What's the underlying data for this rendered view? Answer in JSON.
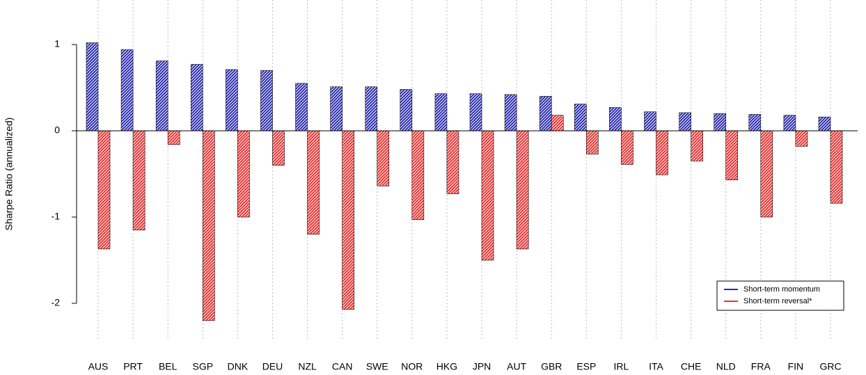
{
  "chart_data": {
    "type": "bar",
    "y_label": "Sharpe Ratio (annualized)",
    "categories": [
      "AUS",
      "PRT",
      "BEL",
      "SGP",
      "DNK",
      "DEU",
      "NZL",
      "CAN",
      "SWE",
      "NOR",
      "HKG",
      "JPN",
      "AUT",
      "GBR",
      "ESP",
      "IRL",
      "ITA",
      "CHE",
      "NLD",
      "FRA",
      "FIN",
      "GRC"
    ],
    "series": [
      {
        "name": "Short-term momentum",
        "color": "#2a2ab0",
        "values": [
          1.02,
          0.94,
          0.81,
          0.77,
          0.71,
          0.7,
          0.55,
          0.51,
          0.51,
          0.48,
          0.43,
          0.43,
          0.42,
          0.4,
          0.31,
          0.27,
          0.22,
          0.21,
          0.2,
          0.19,
          0.18,
          0.16
        ]
      },
      {
        "name": "Short-term reversal*",
        "color": "#ee3030",
        "values": [
          -1.37,
          -1.15,
          -0.16,
          -2.2,
          -1.0,
          -0.4,
          -1.2,
          -2.07,
          -0.64,
          -1.03,
          -0.73,
          -1.5,
          -1.37,
          0.18,
          -0.27,
          -0.39,
          -0.51,
          -0.35,
          -0.57,
          -1.0,
          -0.18,
          -0.84
        ]
      }
    ],
    "ylim": [
      -2.5,
      1.5
    ],
    "yticks": [
      -2,
      -1,
      0,
      1
    ],
    "grid": "x-dotted",
    "legend": "bottom-right"
  }
}
